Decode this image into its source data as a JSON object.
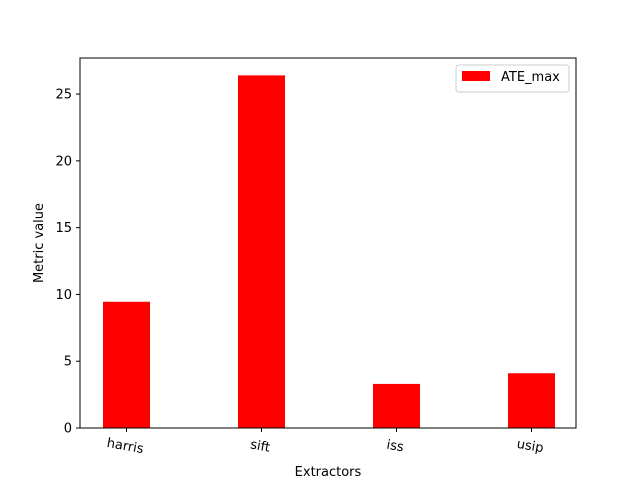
{
  "chart_data": {
    "type": "bar",
    "categories": [
      "harris",
      "sift",
      "iss",
      "usip"
    ],
    "series": [
      {
        "name": "ATE_max",
        "values": [
          9.45,
          26.4,
          3.3,
          4.1
        ],
        "color": "#ff0000"
      }
    ],
    "xlabel": "Extractors",
    "ylabel": "Metric value",
    "ylim": [
      0,
      27.7
    ],
    "yticks": [
      0,
      5,
      10,
      15,
      20,
      25
    ],
    "ytick_labels": [
      "0",
      "5",
      "10",
      "15",
      "20",
      "25"
    ],
    "legend": {
      "position": "top-right"
    },
    "grid": false,
    "x_tick_rotation": "slanted"
  }
}
